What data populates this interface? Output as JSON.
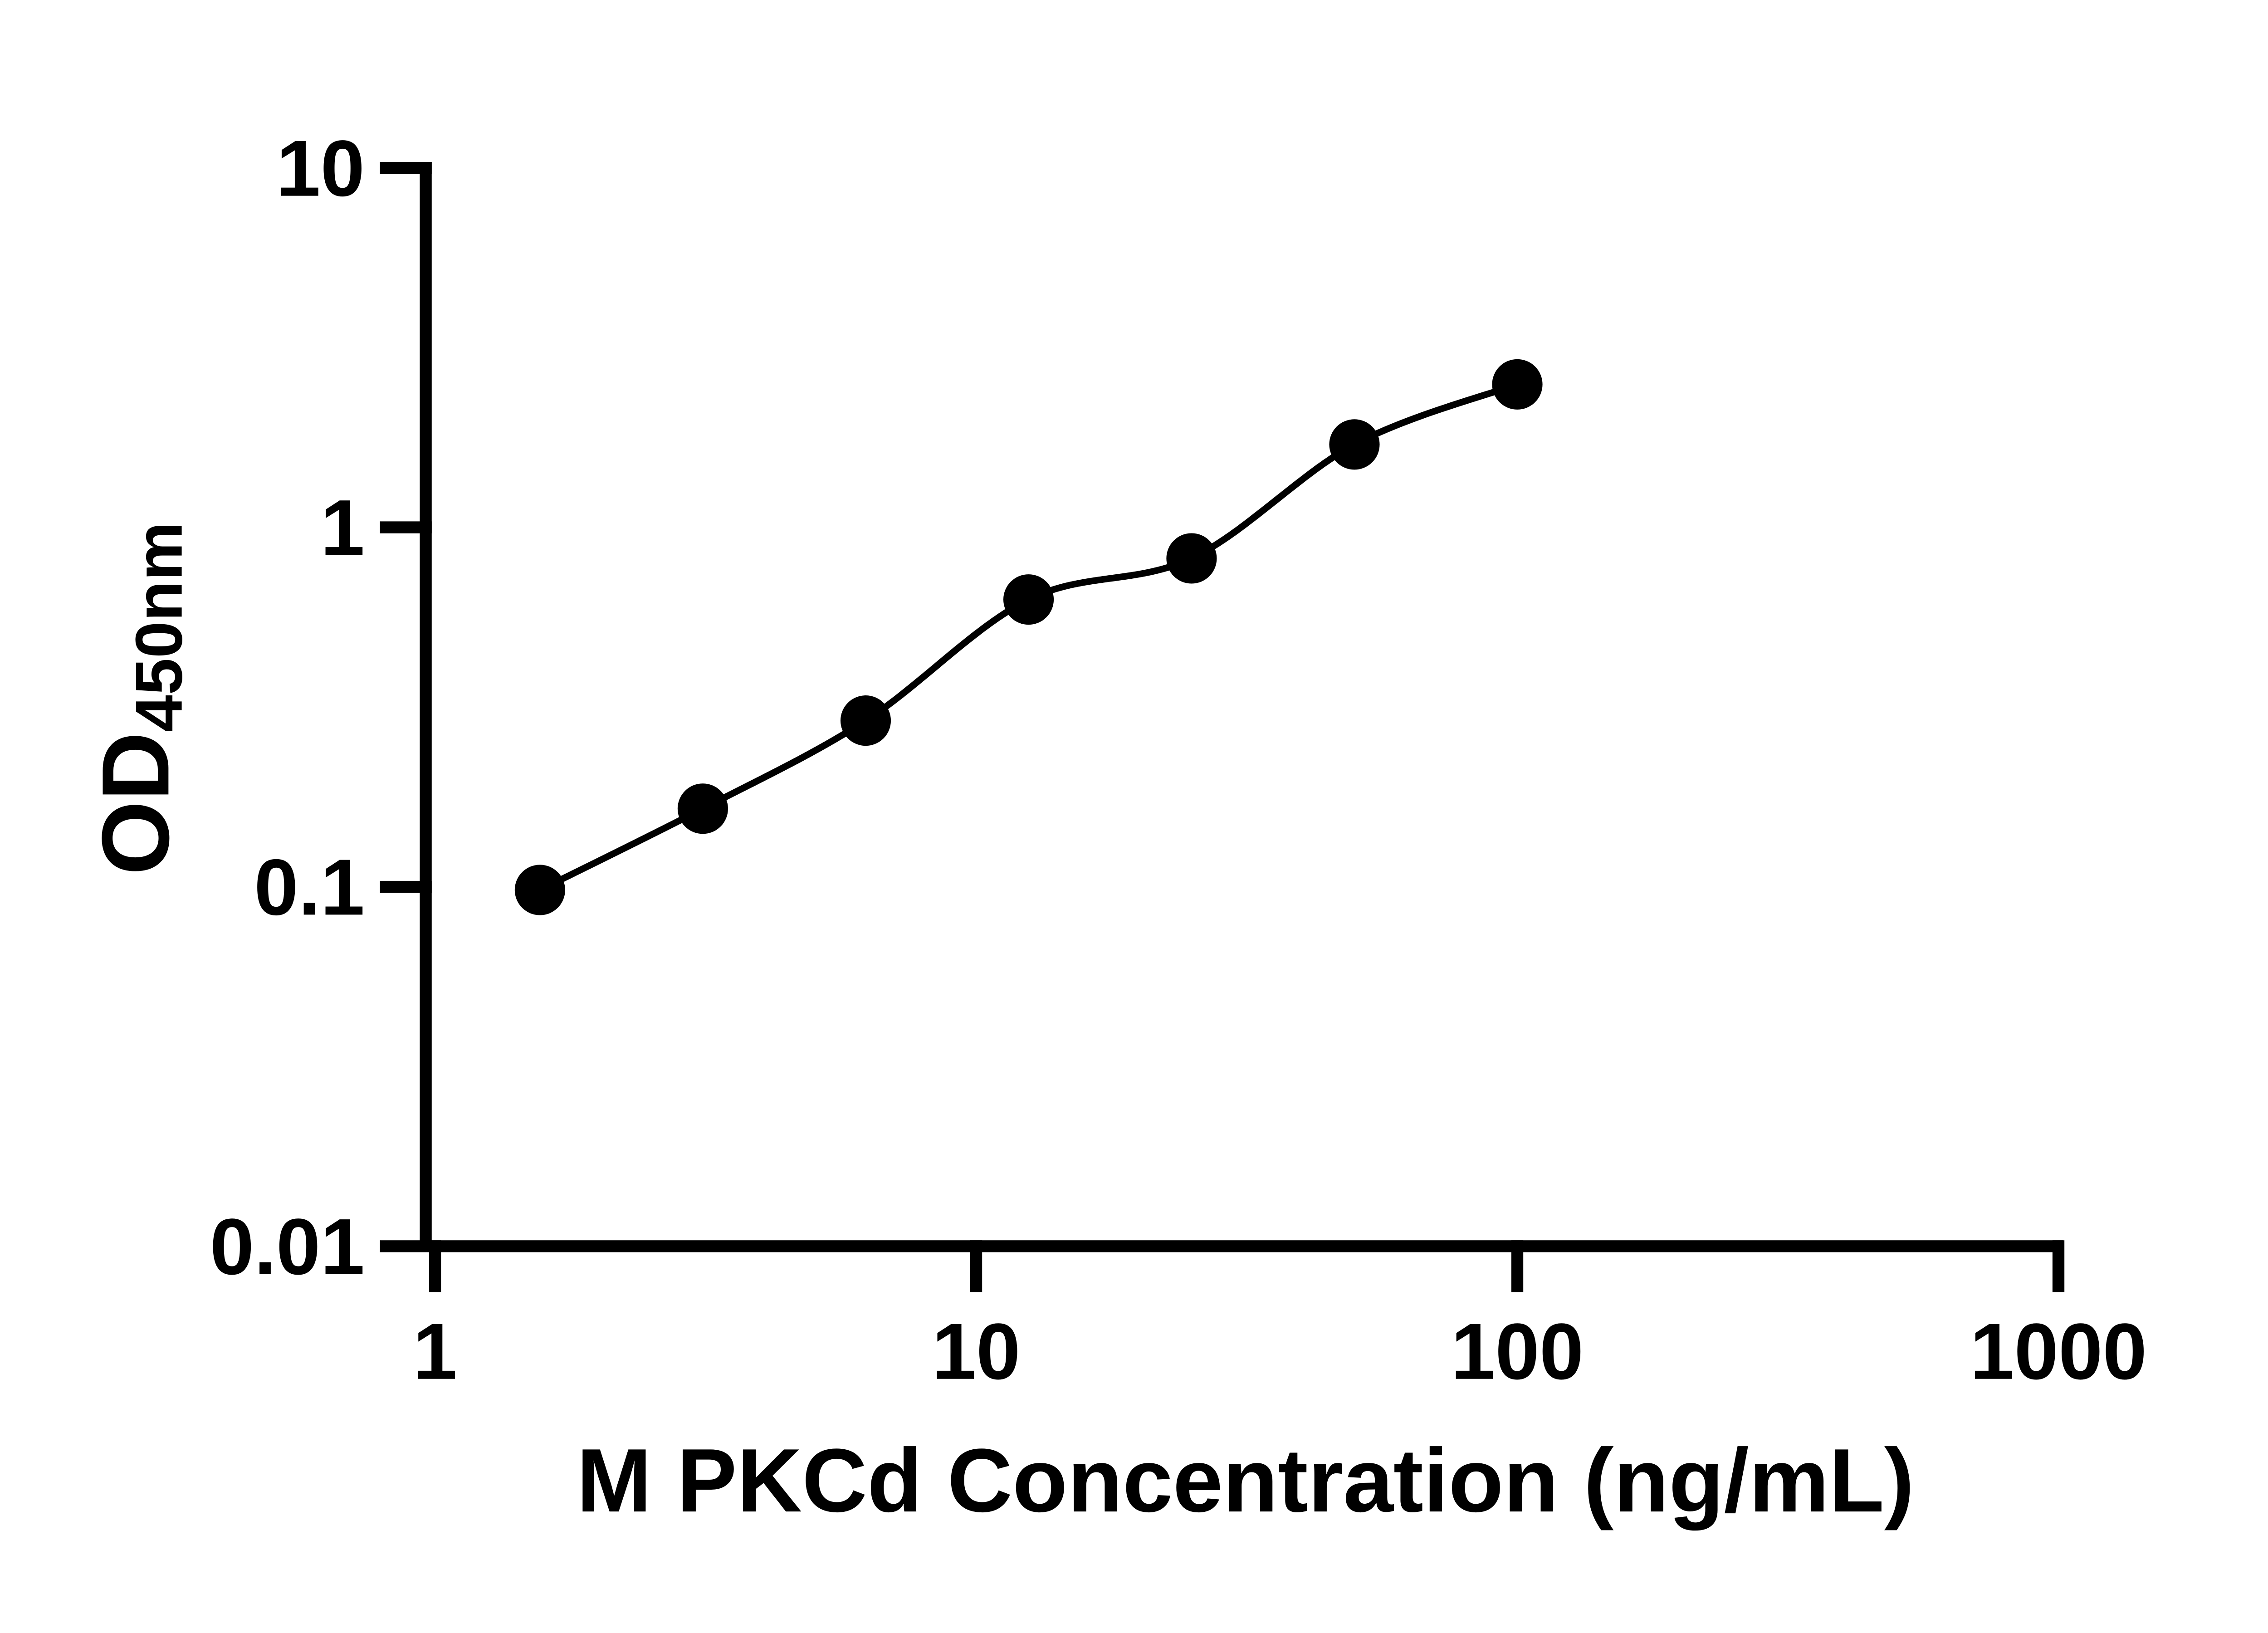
{
  "figure": {
    "background_color": "#ffffff",
    "foreground_color": "#000000"
  },
  "chart_data": {
    "type": "scatter",
    "title": "",
    "xlabel": "M PKCd Concentration (ng/mL)",
    "ylabel_main": "OD",
    "ylabel_sub": "450nm",
    "x_scale": "log10",
    "y_scale": "log10",
    "xlim": [
      1,
      1000
    ],
    "ylim": [
      0.01,
      10
    ],
    "x_ticks": [
      1,
      10,
      100,
      1000
    ],
    "x_tick_labels": [
      "1",
      "10",
      "100",
      "1000"
    ],
    "y_ticks": [
      10,
      1,
      0.1,
      0.01
    ],
    "y_tick_labels": [
      "10",
      "1",
      "0.1",
      "0.01"
    ],
    "grid": "off",
    "legend": "none",
    "series": [
      {
        "x": [
          1.5625,
          3.125,
          6.25,
          12.5,
          25,
          50,
          100
        ],
        "y": [
          0.098,
          0.165,
          0.29,
          0.63,
          0.82,
          1.7,
          2.5
        ],
        "marker": "filled-circle",
        "marker_color": "#000000",
        "line": "smooth-fit-curve",
        "line_color": "#000000"
      }
    ]
  }
}
